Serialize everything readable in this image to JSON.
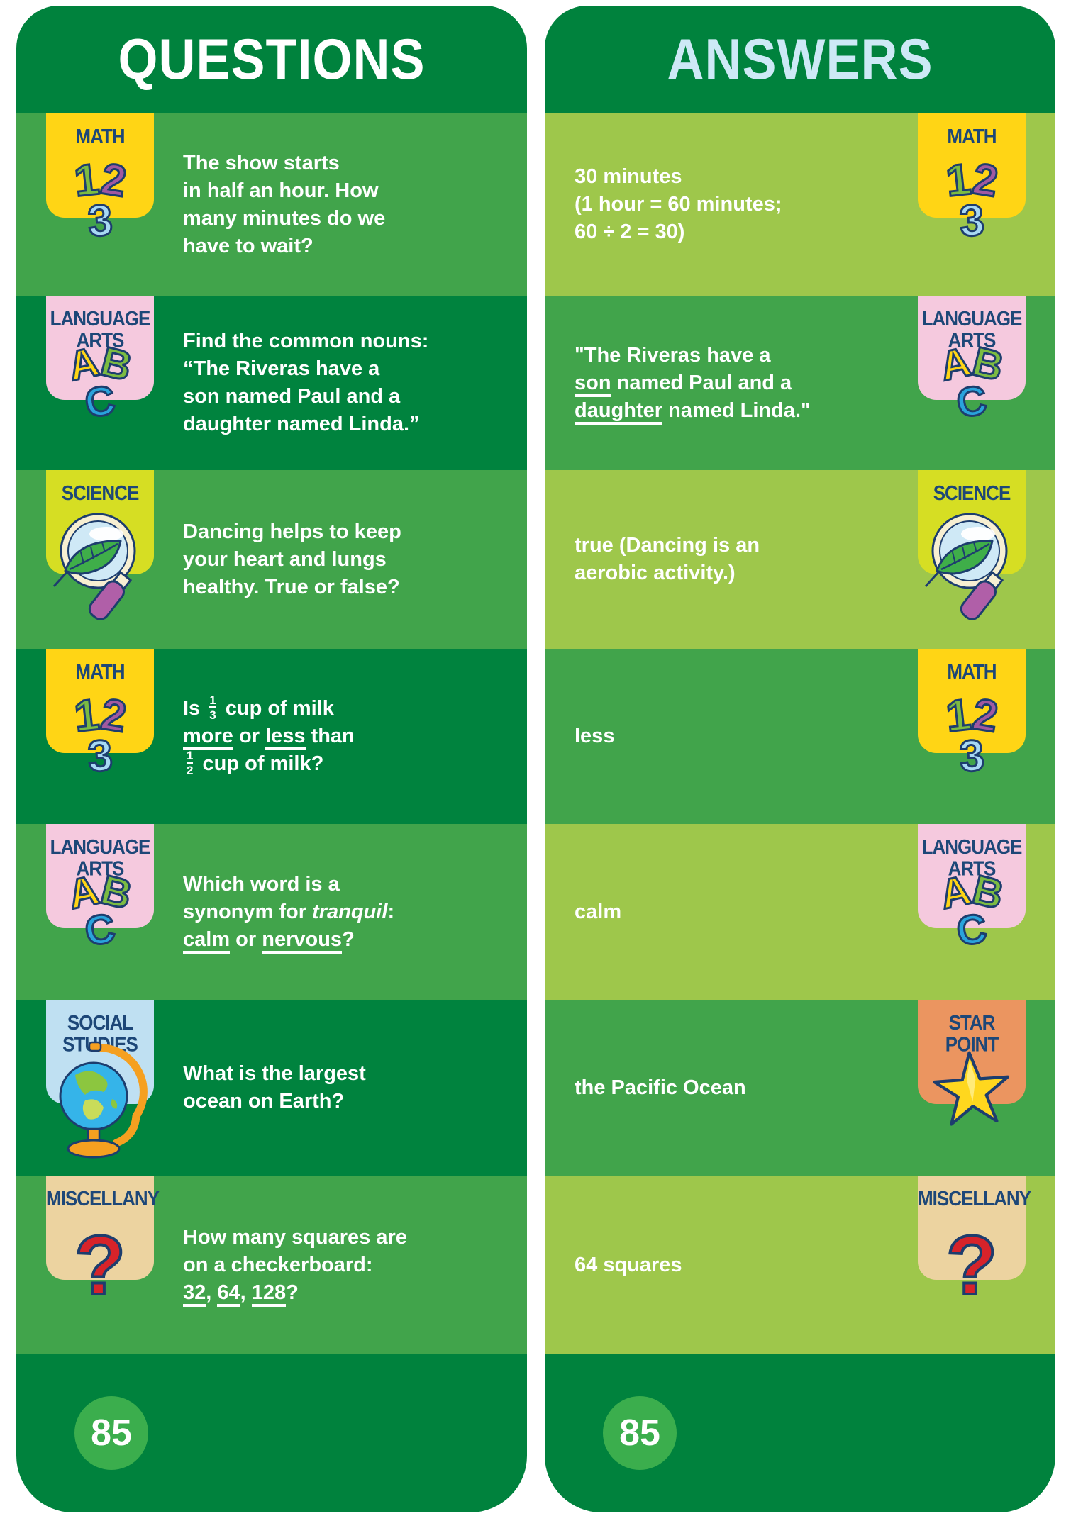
{
  "colors": {
    "page_bg": "#FFFFFF",
    "panel_green_dark": "#00823D",
    "row_green_medium": "#41A44B",
    "row_green_dark": "#00833E",
    "row_green_light": "#9EC74B",
    "page_circle_green": "#3BAE4D",
    "title_questions_color": "#FFFFFF",
    "title_answers_color": "#CDE9F6",
    "text_white": "#FFFFFF",
    "badge_label_navy": "#1D4778",
    "icon_outline_navy": "#1D3D6E",
    "badge_math_yellow": "#FFD515",
    "badge_language_pink": "#F5C9DE",
    "badge_science_chartreuse": "#D6DE23",
    "badge_social_blue": "#BFE0F2",
    "badge_miscellany_tan": "#ECD3A0",
    "badge_star_orange": "#EB9560",
    "num1_green": "#7CBB42",
    "num2_purple": "#A159A0",
    "num3_blue": "#A8D9F4",
    "letterA_yellow": "#FFD515",
    "letterB_green": "#7CBB42",
    "letterC_blue": "#29A3DC",
    "question_mark_red": "#D7232A",
    "star_gold": "#FFD71E",
    "magnifier_rim_cream": "#F7EFD2",
    "magnifier_lens_blue": "#CFE9F6",
    "magnifier_handle_purple": "#B05FA8",
    "leaf_green": "#3FAE49",
    "globe_blue": "#35B4E9",
    "globe_land_green": "#8CC63F",
    "globe_stand_orange": "#F5A020"
  },
  "questions_panel": {
    "title": "QUESTIONS",
    "page_number": "85",
    "badge_side": "left",
    "row_colors": [
      "#41A44B",
      "#00833E"
    ],
    "rows": [
      {
        "badge": {
          "icon": "math-123",
          "label_lines": [
            "MATH"
          ],
          "bg": "#FFD515"
        },
        "lines": [
          [
            {
              "t": "The show starts"
            }
          ],
          [
            {
              "t": "in half an hour. How"
            }
          ],
          [
            {
              "t": "many minutes do we"
            }
          ],
          [
            {
              "t": "have to wait?"
            }
          ]
        ]
      },
      {
        "badge": {
          "icon": "abc",
          "label_lines": [
            "LANGUAGE",
            "ARTS"
          ],
          "bg": "#F5C9DE"
        },
        "lines": [
          [
            {
              "t": "Find the common nouns:"
            }
          ],
          [
            {
              "t": "“The Riveras have a"
            }
          ],
          [
            {
              "t": "son named Paul and a"
            }
          ],
          [
            {
              "t": "daughter named Linda.”"
            }
          ]
        ]
      },
      {
        "badge": {
          "icon": "science-magnifier",
          "label_lines": [
            "SCIENCE"
          ],
          "bg": "#D6DE23"
        },
        "lines": [
          [
            {
              "t": "Dancing helps to keep"
            }
          ],
          [
            {
              "t": "your heart and lungs"
            }
          ],
          [
            {
              "t": "healthy. True or false?"
            }
          ]
        ]
      },
      {
        "badge": {
          "icon": "math-123",
          "label_lines": [
            "MATH"
          ],
          "bg": "#FFD515"
        },
        "lines": [
          [
            {
              "t": "Is "
            },
            {
              "frac": [
                "1",
                "3"
              ]
            },
            {
              "t": " cup of milk"
            }
          ],
          [
            {
              "t": "more",
              "u": true
            },
            {
              "t": " or "
            },
            {
              "t": "less",
              "u": true
            },
            {
              "t": " than"
            }
          ],
          [
            {
              "frac": [
                "1",
                "2"
              ]
            },
            {
              "t": " cup of milk?"
            }
          ]
        ]
      },
      {
        "badge": {
          "icon": "abc",
          "label_lines": [
            "LANGUAGE",
            "ARTS"
          ],
          "bg": "#F5C9DE"
        },
        "lines": [
          [
            {
              "t": "Which word is a"
            }
          ],
          [
            {
              "t": "synonym for "
            },
            {
              "t": "tranquil",
              "i": true
            },
            {
              "t": ":"
            }
          ],
          [
            {
              "t": "calm",
              "u": true
            },
            {
              "t": " or "
            },
            {
              "t": "nervous",
              "u": true
            },
            {
              "t": "?"
            }
          ]
        ]
      },
      {
        "badge": {
          "icon": "social-globe",
          "label_lines": [
            "SOCIAL",
            "STUDIES"
          ],
          "bg": "#BFE0F2"
        },
        "lines": [
          [
            {
              "t": "What is the largest"
            }
          ],
          [
            {
              "t": "ocean on Earth?"
            }
          ]
        ]
      },
      {
        "badge": {
          "icon": "miscellany-question",
          "label_lines": [
            "MISCELLANY"
          ],
          "bg": "#ECD3A0"
        },
        "lines": [
          [
            {
              "t": "How many squares are"
            }
          ],
          [
            {
              "t": "on a checkerboard:"
            }
          ],
          [
            {
              "t": "32",
              "u": true
            },
            {
              "t": ", "
            },
            {
              "t": "64",
              "u": true
            },
            {
              "t": ", "
            },
            {
              "t": "128",
              "u": true
            },
            {
              "t": "?"
            }
          ]
        ]
      }
    ]
  },
  "answers_panel": {
    "title": "ANSWERS",
    "page_number": "85",
    "badge_side": "right",
    "row_colors": [
      "#9EC74B",
      "#41A44B"
    ],
    "rows": [
      {
        "badge": {
          "icon": "math-123",
          "label_lines": [
            "MATH"
          ],
          "bg": "#FFD515"
        },
        "lines": [
          [
            {
              "t": "30 minutes"
            }
          ],
          [
            {
              "t": "(1 hour = 60 minutes;"
            }
          ],
          [
            {
              "t": "60 ÷ 2 = 30)"
            }
          ]
        ]
      },
      {
        "badge": {
          "icon": "abc",
          "label_lines": [
            "LANGUAGE",
            "ARTS"
          ],
          "bg": "#F5C9DE"
        },
        "lines": [
          [
            {
              "t": "\"The Riveras have a"
            }
          ],
          [
            {
              "t": "son",
              "u": true
            },
            {
              "t": " named Paul and a"
            }
          ],
          [
            {
              "t": "daughter",
              "u": true
            },
            {
              "t": " named Linda.\""
            }
          ]
        ]
      },
      {
        "badge": {
          "icon": "science-magnifier",
          "label_lines": [
            "SCIENCE"
          ],
          "bg": "#D6DE23"
        },
        "lines": [
          [
            {
              "t": "true (Dancing is an"
            }
          ],
          [
            {
              "t": "aerobic activity.)"
            }
          ]
        ]
      },
      {
        "badge": {
          "icon": "math-123",
          "label_lines": [
            "MATH"
          ],
          "bg": "#FFD515"
        },
        "lines": [
          [
            {
              "t": "less"
            }
          ]
        ]
      },
      {
        "badge": {
          "icon": "abc",
          "label_lines": [
            "LANGUAGE",
            "ARTS"
          ],
          "bg": "#F5C9DE"
        },
        "lines": [
          [
            {
              "t": "calm"
            }
          ]
        ]
      },
      {
        "badge": {
          "icon": "star",
          "label_lines": [
            "STAR",
            "POINT"
          ],
          "bg": "#EB9560"
        },
        "lines": [
          [
            {
              "t": "the Pacific Ocean"
            }
          ]
        ]
      },
      {
        "badge": {
          "icon": "miscellany-question",
          "label_lines": [
            "MISCELLANY"
          ],
          "bg": "#ECD3A0"
        },
        "lines": [
          [
            {
              "t": "64 squares"
            }
          ]
        ]
      }
    ]
  }
}
